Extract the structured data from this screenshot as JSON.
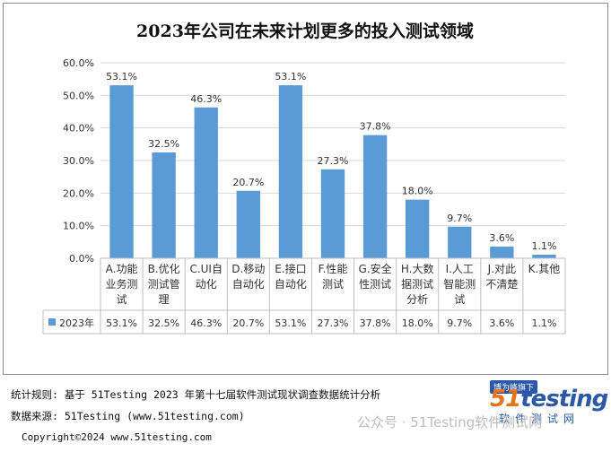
{
  "chart_data": {
    "type": "bar",
    "title": "2023年公司在未来计划更多的投入测试领域",
    "categories": [
      [
        "A.功能",
        "业务测",
        "试"
      ],
      [
        "B.优化",
        "测试管",
        "理"
      ],
      [
        "C.UI自",
        "动化"
      ],
      [
        "D.移动",
        "自动化"
      ],
      [
        "E.接口",
        "自动化"
      ],
      [
        "F.性能",
        "测试"
      ],
      [
        "G.安全",
        "性测试"
      ],
      [
        "H.大数",
        "据测试",
        "分析"
      ],
      [
        "I.人工",
        "智能测",
        "试"
      ],
      [
        "J.对此",
        "不清楚"
      ],
      [
        "K.其他"
      ]
    ],
    "series": [
      {
        "name": "2023年",
        "values": [
          53.1,
          32.5,
          46.3,
          20.7,
          53.1,
          27.3,
          37.8,
          18.0,
          9.7,
          3.6,
          1.1
        ],
        "labels": [
          "53.1%",
          "32.5%",
          "46.3%",
          "20.7%",
          "53.1%",
          "27.3%",
          "37.8%",
          "18.0%",
          "9.7%",
          "3.6%",
          "1.1%"
        ]
      }
    ],
    "y_ticks": [
      "0.0%",
      "10.0%",
      "20.0%",
      "30.0%",
      "40.0%",
      "50.0%",
      "60.0%"
    ],
    "ylim": [
      0,
      60
    ],
    "grid": true,
    "legend": "data-table",
    "colors": {
      "bar": "#5b9bd5",
      "grid": "#d9d9d9",
      "axis": "#bfbfbf"
    }
  },
  "footer": {
    "rule": "统计规则: 基于 51Testing 2023 年第十七届软件测试现状调查数据统计分析",
    "source": "数据来源: 51Testing (www.51testing.com)",
    "copyright": "Copyright©2024 www.51testing.com"
  },
  "brand": {
    "badge": "博为峰旗下",
    "logo_num": "51",
    "logo_text": "testing",
    "cn": "软件测试网"
  },
  "wechat": "公众号 · 51Testing软件测试网"
}
